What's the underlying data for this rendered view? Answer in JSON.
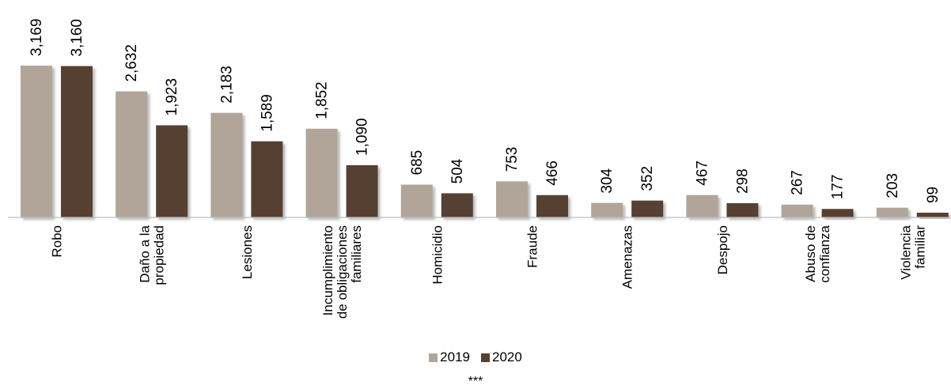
{
  "chart_data": {
    "type": "bar",
    "categories": [
      [
        "Robo"
      ],
      [
        "Daño a la",
        "propiedad"
      ],
      [
        "Lesiones"
      ],
      [
        "Incumplimiento",
        "de obligaciones",
        "familiares"
      ],
      [
        "Homicidio"
      ],
      [
        "Fraude"
      ],
      [
        "Amenazas"
      ],
      [
        "Despojo"
      ],
      [
        "Abuso de",
        "confianza"
      ],
      [
        "Violencia",
        "familiar"
      ]
    ],
    "series": [
      {
        "name": "2019",
        "color": "#b1a59a",
        "values": [
          3169,
          2632,
          2183,
          1852,
          685,
          753,
          304,
          467,
          267,
          203
        ],
        "labels": [
          "3,169",
          "2,632",
          "2,183",
          "1,852",
          "685",
          "753",
          "304",
          "467",
          "267",
          "203"
        ]
      },
      {
        "name": "2020",
        "color": "#574030",
        "values": [
          3160,
          1923,
          1589,
          1090,
          504,
          466,
          352,
          298,
          177,
          99
        ],
        "labels": [
          "3,160",
          "1,923",
          "1,589",
          "1,090",
          "504",
          "466",
          "352",
          "298",
          "177",
          "99"
        ]
      }
    ],
    "ylim": [
      0,
      3169
    ],
    "grid": false,
    "legend_position": "bottom"
  },
  "footnote": "***"
}
